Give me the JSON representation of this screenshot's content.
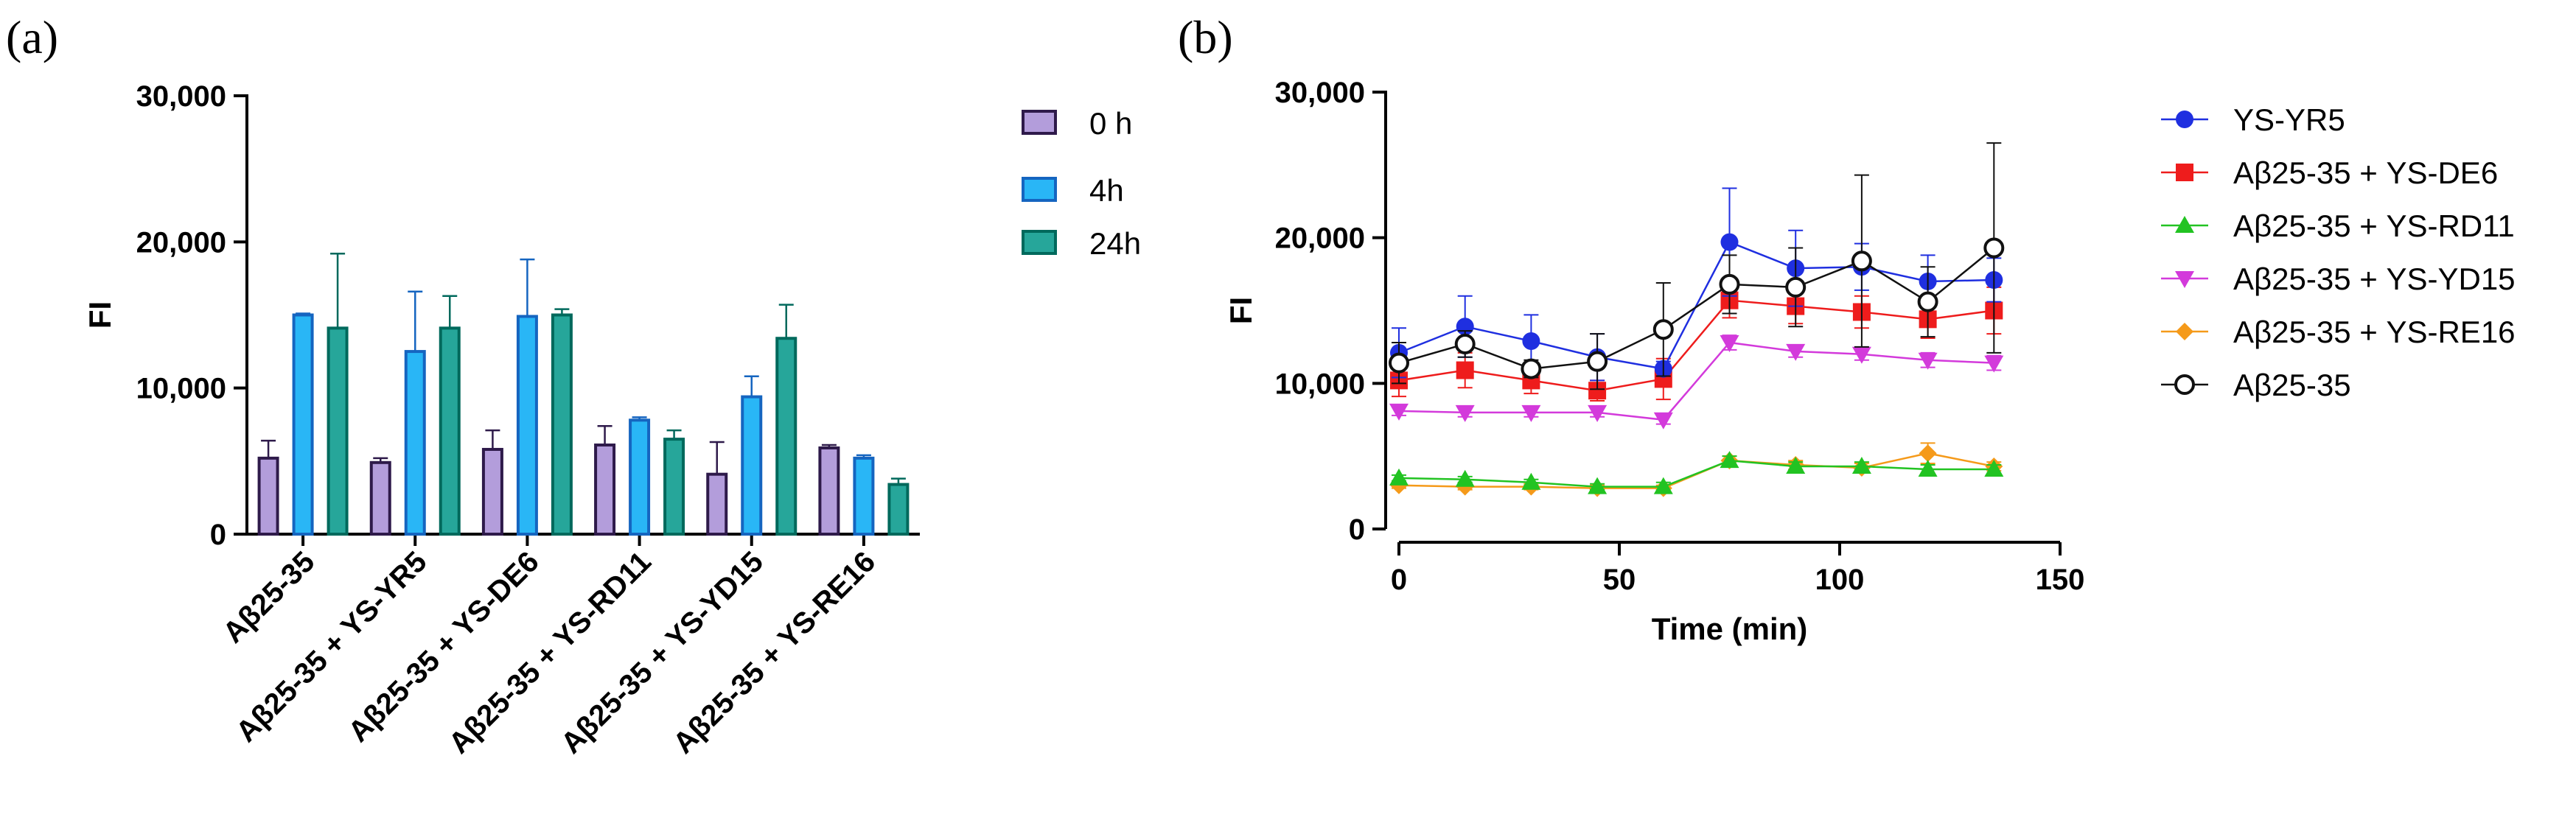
{
  "figure": {
    "panel_a_label": "(a)",
    "panel_b_label": "(b)"
  },
  "chart_data": [
    {
      "type": "bar",
      "panel": "(a)",
      "ylabel": "FI",
      "xlabel": "",
      "ylim": [
        0,
        30000
      ],
      "yticks": [
        0,
        10000,
        20000,
        30000
      ],
      "ytick_labels": [
        "0",
        "10,000",
        "20,000",
        "30,000"
      ],
      "legend_position": "top-right",
      "categories": [
        "Aβ25-35",
        "Aβ25-35 + YS-YR5",
        "Aβ25-35 + YS-DE6",
        "Aβ25-35 + YS-RD11",
        "Aβ25-35 + YS-YD15",
        "Aβ25-35 + YS-RE16"
      ],
      "series": [
        {
          "name": "0 h",
          "fill": "#b39ddb",
          "edge": "#2e1a4a",
          "values": [
            5200,
            4900,
            5800,
            6100,
            4100,
            5900
          ],
          "errors": [
            1200,
            300,
            1300,
            1300,
            2200,
            200
          ]
        },
        {
          "name": "4h",
          "fill": "#29b6f6",
          "edge": "#1565c0",
          "values": [
            15000,
            12500,
            14900,
            7800,
            9400,
            5200
          ],
          "errors": [
            100,
            4100,
            3900,
            200,
            1400,
            200
          ]
        },
        {
          "name": "24h",
          "fill": "#26a69a",
          "edge": "#00695c",
          "values": [
            14100,
            14100,
            15000,
            6500,
            13400,
            3400
          ],
          "errors": [
            5100,
            2200,
            400,
            600,
            2300,
            400
          ]
        }
      ]
    },
    {
      "type": "line",
      "panel": "(b)",
      "xlabel": "Time (min)",
      "ylabel": "FI",
      "xlim": [
        0,
        150
      ],
      "ylim": [
        0,
        30000
      ],
      "xticks": [
        0,
        50,
        100,
        150
      ],
      "xtick_labels": [
        "0",
        "50",
        "100",
        "150"
      ],
      "yticks": [
        0,
        10000,
        20000,
        30000
      ],
      "ytick_labels": [
        "0",
        "10,000",
        "20,000",
        "30,000"
      ],
      "legend_position": "right",
      "x": [
        0,
        15,
        30,
        45,
        60,
        75,
        90,
        105,
        120,
        135
      ],
      "series": [
        {
          "name": "YS-YR5",
          "color": "#1f2fe0",
          "marker": "circle",
          "values": [
            12100,
            13900,
            12900,
            11800,
            11000,
            19700,
            17900,
            18000,
            17000,
            17100
          ],
          "errors": [
            1700,
            2100,
            1800,
            1600,
            500,
            3700,
            2600,
            1600,
            1800,
            1500
          ]
        },
        {
          "name": "Aβ25-35 + YS-DE6",
          "color": "#ee1c1c",
          "marker": "square",
          "values": [
            10200,
            10900,
            10200,
            9500,
            10300,
            15700,
            15300,
            14900,
            14400,
            15000
          ],
          "errors": [
            1100,
            1200,
            900,
            700,
            1400,
            1200,
            1200,
            1100,
            1300,
            1600
          ]
        },
        {
          "name": "Aβ25-35 + YS-RD11",
          "color": "#22c322",
          "marker": "triangle-up",
          "values": [
            3500,
            3400,
            3200,
            2900,
            2900,
            4700,
            4300,
            4300,
            4100,
            4100
          ],
          "errors": [
            200,
            200,
            200,
            200,
            300,
            300,
            300,
            300,
            300,
            300
          ]
        },
        {
          "name": "Aβ25-35 + YS-YD15",
          "color": "#d33adb",
          "marker": "triangle-down",
          "values": [
            8100,
            8000,
            8000,
            8000,
            7500,
            12800,
            12200,
            12000,
            11600,
            11400
          ],
          "errors": [
            300,
            300,
            300,
            300,
            300,
            500,
            400,
            400,
            500,
            500
          ]
        },
        {
          "name": "Aβ25-35 + YS-RE16",
          "color": "#f59a1a",
          "marker": "diamond",
          "values": [
            3000,
            2900,
            2900,
            2800,
            2800,
            4700,
            4400,
            4200,
            5200,
            4300
          ],
          "errors": [
            200,
            200,
            200,
            200,
            200,
            300,
            300,
            300,
            700,
            300
          ]
        },
        {
          "name": "Aβ25-35",
          "color": "#111111",
          "marker": "circle-open",
          "values": [
            11400,
            12700,
            11000,
            11500,
            13700,
            16800,
            16600,
            18400,
            15600,
            19300
          ],
          "errors": [
            1400,
            900,
            600,
            1900,
            3200,
            2000,
            2700,
            5900,
            2400,
            7200
          ]
        }
      ]
    }
  ]
}
